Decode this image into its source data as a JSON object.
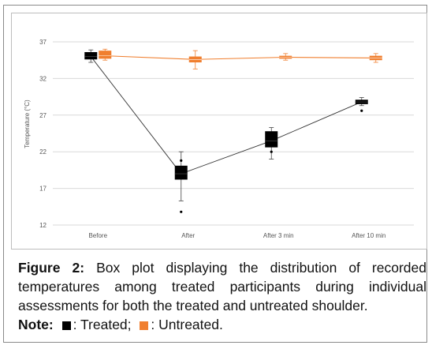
{
  "chart_data": {
    "type": "box",
    "ylabel": "Temperature (°C)",
    "xlabel": "",
    "ylim": [
      12,
      37
    ],
    "yticks": [
      37,
      32,
      27,
      22,
      17,
      12
    ],
    "grid": true,
    "categories": [
      "Before",
      "After",
      "After 3 min",
      "After 10 min"
    ],
    "series": [
      {
        "name": "Treated",
        "color": "#000000",
        "boxes": [
          {
            "min": 34.2,
            "q1": 34.6,
            "median": 35.0,
            "q3": 35.6,
            "max": 35.9,
            "outliers": []
          },
          {
            "min": 15.3,
            "q1": 18.2,
            "median": 19.0,
            "q3": 20.1,
            "max": 22.0,
            "outliers": [
              20.8,
              13.8
            ]
          },
          {
            "min": 21.0,
            "q1": 22.6,
            "median": 23.5,
            "q3": 24.8,
            "max": 25.3,
            "outliers": [
              22.0
            ]
          },
          {
            "min": 28.3,
            "q1": 28.5,
            "median": 28.8,
            "q3": 29.1,
            "max": 29.4,
            "outliers": [
              27.6
            ]
          }
        ]
      },
      {
        "name": "Untreated",
        "color": "#f07f2f",
        "boxes": [
          {
            "min": 34.5,
            "q1": 34.7,
            "median": 35.1,
            "q3": 35.8,
            "max": 36.0,
            "outliers": []
          },
          {
            "min": 33.3,
            "q1": 34.2,
            "median": 34.6,
            "q3": 35.0,
            "max": 35.8,
            "outliers": []
          },
          {
            "min": 34.5,
            "q1": 34.7,
            "median": 34.9,
            "q3": 35.1,
            "max": 35.4,
            "outliers": []
          },
          {
            "min": 34.2,
            "q1": 34.5,
            "median": 34.8,
            "q3": 35.1,
            "max": 35.4,
            "outliers": []
          }
        ]
      }
    ]
  },
  "caption": {
    "figure_label": "Figure 2:",
    "figure_text": " Box plot displaying the distribution of recorded temperatures among treated participants during individual assessments for both the treated and untreated shoulder.",
    "note_label": "Note:",
    "treated_text": ": Treated;",
    "untreated_text": ": Untreated."
  }
}
